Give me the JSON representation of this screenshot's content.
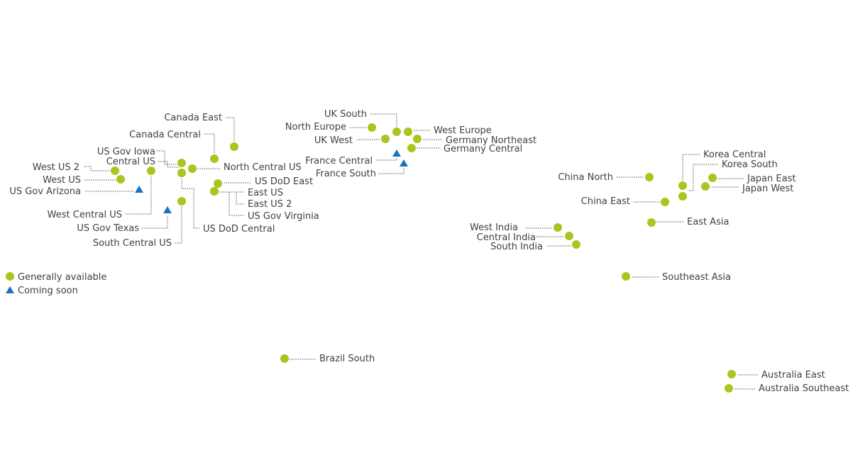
{
  "colors": {
    "available": "#a8c61f",
    "coming_soon": "#1a72bb",
    "text": "#404040",
    "leader": "#555555",
    "background": "#ffffff"
  },
  "legend": {
    "items": [
      {
        "label": "Generally available",
        "status": "available"
      },
      {
        "label": "Coming soon",
        "status": "coming_soon"
      }
    ]
  },
  "regions": [
    {
      "name": "Canada East",
      "status": "available"
    },
    {
      "name": "Canada Central",
      "status": "available"
    },
    {
      "name": "US Gov Iowa",
      "status": "available"
    },
    {
      "name": "Central US",
      "status": "available"
    },
    {
      "name": "West US 2",
      "status": "available"
    },
    {
      "name": "West US",
      "status": "available"
    },
    {
      "name": "US Gov Arizona",
      "status": "coming_soon"
    },
    {
      "name": "North Central US",
      "status": "available"
    },
    {
      "name": "US DoD East",
      "status": "available"
    },
    {
      "name": "East US",
      "status": "available"
    },
    {
      "name": "East US 2",
      "status": "available"
    },
    {
      "name": "US Gov Virginia",
      "status": "available"
    },
    {
      "name": "West Central US",
      "status": "available"
    },
    {
      "name": "US Gov Texas",
      "status": "coming_soon"
    },
    {
      "name": "US DoD Central",
      "status": "available"
    },
    {
      "name": "South Central US",
      "status": "available"
    },
    {
      "name": "UK South",
      "status": "available"
    },
    {
      "name": "North Europe",
      "status": "available"
    },
    {
      "name": "UK West",
      "status": "available"
    },
    {
      "name": "West Europe",
      "status": "available"
    },
    {
      "name": "Germany Northeast",
      "status": "available"
    },
    {
      "name": "Germany Central",
      "status": "available"
    },
    {
      "name": "France Central",
      "status": "coming_soon"
    },
    {
      "name": "France South",
      "status": "coming_soon"
    },
    {
      "name": "China North",
      "status": "available"
    },
    {
      "name": "China East",
      "status": "available"
    },
    {
      "name": "Korea Central",
      "status": "available"
    },
    {
      "name": "Korea South",
      "status": "available"
    },
    {
      "name": "Japan East",
      "status": "available"
    },
    {
      "name": "Japan West",
      "status": "available"
    },
    {
      "name": "East Asia",
      "status": "available"
    },
    {
      "name": "West India",
      "status": "available"
    },
    {
      "name": "Central India",
      "status": "available"
    },
    {
      "name": "South India",
      "status": "available"
    },
    {
      "name": "Southeast Asia",
      "status": "available"
    },
    {
      "name": "Brazil South",
      "status": "available"
    },
    {
      "name": "Australia East",
      "status": "available"
    },
    {
      "name": "Australia Southeast",
      "status": "available"
    }
  ]
}
